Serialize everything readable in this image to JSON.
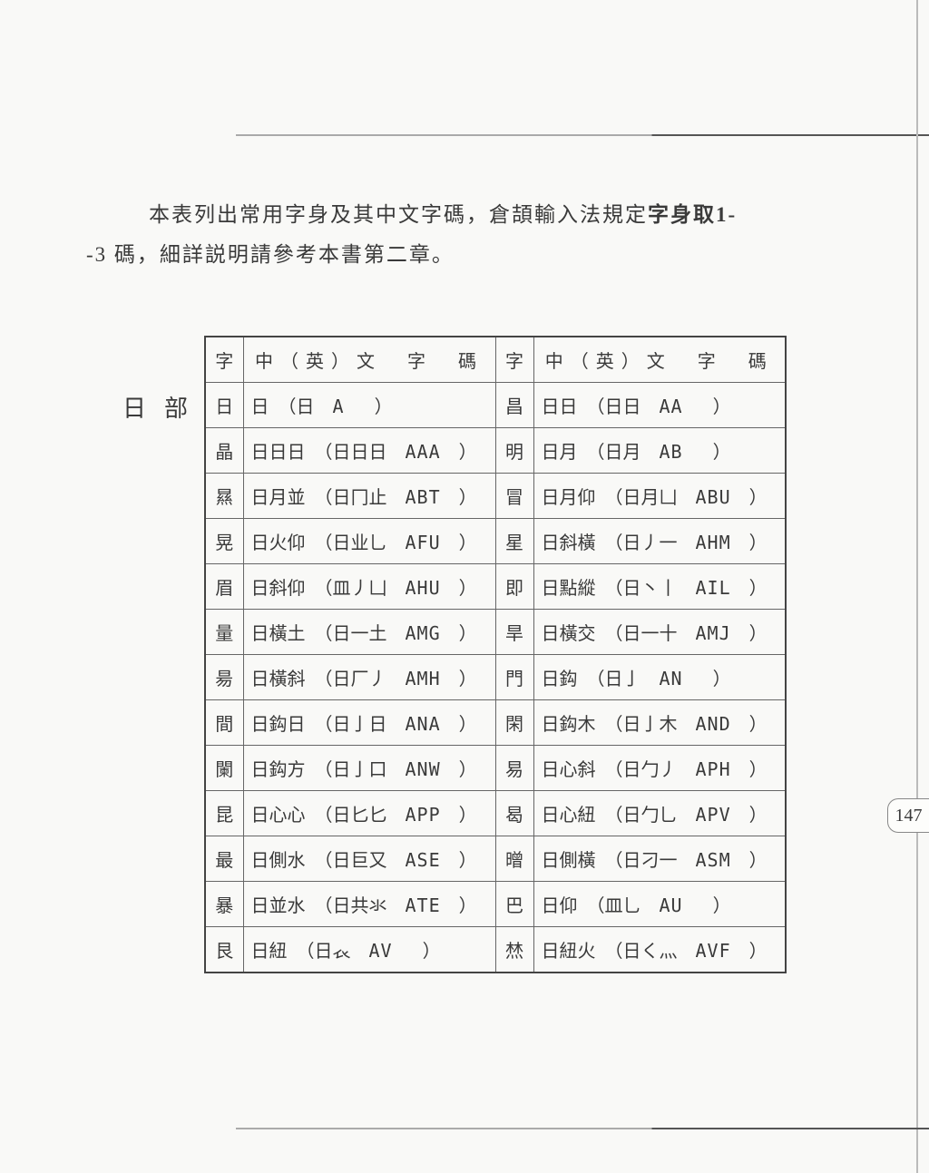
{
  "intro": {
    "line1_prefix": "本表列出常用字身及其中文字碼，倉頡輸入法規定",
    "line1_bold": "字身取1-",
    "line2": "-3 碼，細詳説明請參考本書第二章。"
  },
  "section_label": "日部",
  "headers": {
    "char": "字",
    "code": "中（英）文　字　碼"
  },
  "rows": [
    {
      "l_char": "日",
      "l_cn": "日",
      "l_paren": "（日",
      "l_eng": "A",
      "r_char": "昌",
      "r_cn": "日日",
      "r_paren": "（日日",
      "r_eng": "AA"
    },
    {
      "l_char": "晶",
      "l_cn": "日日日",
      "l_paren": "（日日日",
      "l_eng": "AAA",
      "r_char": "明",
      "r_cn": "日月",
      "r_paren": "（日月",
      "r_eng": "AB"
    },
    {
      "l_char": "㬎",
      "l_cn": "日月並",
      "l_paren": "（日冂止",
      "l_eng": "ABT",
      "r_char": "冒",
      "r_cn": "日月仰",
      "r_paren": "（日月凵",
      "r_eng": "ABU"
    },
    {
      "l_char": "晃",
      "l_cn": "日火仰",
      "l_paren": "（日业乚",
      "l_eng": "AFU",
      "r_char": "星",
      "r_cn": "日斜橫",
      "r_paren": "（日丿一",
      "r_eng": "AHM"
    },
    {
      "l_char": "眉",
      "l_cn": "日斜仰",
      "l_paren": "（皿丿凵",
      "l_eng": "AHU",
      "r_char": "即",
      "r_cn": "日點縱",
      "r_paren": "（日丶丨",
      "r_eng": "AIL"
    },
    {
      "l_char": "量",
      "l_cn": "日橫土",
      "l_paren": "（日一土",
      "l_eng": "AMG",
      "r_char": "旱",
      "r_cn": "日橫交",
      "r_paren": "（日一十",
      "r_eng": "AMJ"
    },
    {
      "l_char": "昜",
      "l_cn": "日橫斜",
      "l_paren": "（日厂丿",
      "l_eng": "AMH",
      "r_char": "門",
      "r_cn": "日鈎",
      "r_paren": "（日亅",
      "r_eng": "AN"
    },
    {
      "l_char": "間",
      "l_cn": "日鈎日",
      "l_paren": "（日亅日",
      "l_eng": "ANA",
      "r_char": "閑",
      "r_cn": "日鈎木",
      "r_paren": "（日亅木",
      "r_eng": "AND"
    },
    {
      "l_char": "闌",
      "l_cn": "日鈎方",
      "l_paren": "（日亅口",
      "l_eng": "ANW",
      "r_char": "易",
      "r_cn": "日心斜",
      "r_paren": "（日勹丿",
      "r_eng": "APH"
    },
    {
      "l_char": "昆",
      "l_cn": "日心心",
      "l_paren": "（日匕匕",
      "l_eng": "APP",
      "r_char": "曷",
      "r_cn": "日心紐",
      "r_paren": "（日勹乚",
      "r_eng": "APV"
    },
    {
      "l_char": "最",
      "l_cn": "日側水",
      "l_paren": "（日巨又",
      "l_eng": "ASE",
      "r_char": "㬝",
      "r_cn": "日側橫",
      "r_paren": "（日刁一",
      "r_eng": "ASM"
    },
    {
      "l_char": "暴",
      "l_cn": "日並水",
      "l_paren": "（日共氺",
      "l_eng": "ATE",
      "r_char": "巴",
      "r_cn": "日仰",
      "r_paren": "（皿乚",
      "r_eng": "AU"
    },
    {
      "l_char": "艮",
      "l_cn": "日紐",
      "l_paren": "（日𧘇",
      "l_eng": "AV",
      "r_char": "㷊",
      "r_cn": "日紐火",
      "r_paren": "（日く灬",
      "r_eng": "AVF"
    }
  ],
  "page_number": "147"
}
